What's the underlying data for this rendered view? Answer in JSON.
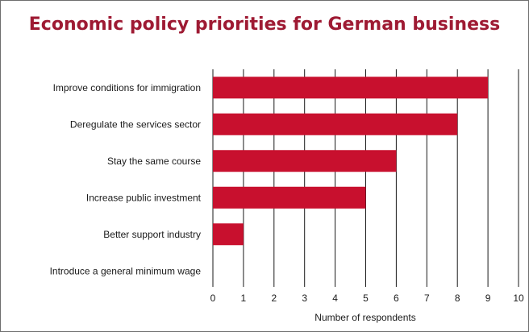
{
  "chart_data": {
    "type": "bar",
    "orientation": "horizontal",
    "title": "Economic policy priorities for German business",
    "xlabel": "Number of respondents",
    "ylabel": "",
    "categories": [
      "Improve conditions for immigration",
      "Deregulate the services sector",
      "Stay the same course",
      "Increase public investment",
      "Better support industry",
      "Introduce a general minimum wage"
    ],
    "values": [
      9,
      8,
      6,
      5,
      1,
      0
    ],
    "xlim": [
      0,
      10
    ],
    "xticks": [
      0,
      1,
      2,
      3,
      4,
      5,
      6,
      7,
      8,
      9,
      10
    ],
    "grid": "vertical",
    "colors": {
      "bar": "#c8102e",
      "title": "#9e1a33",
      "grid": "#1a1a1a"
    }
  }
}
